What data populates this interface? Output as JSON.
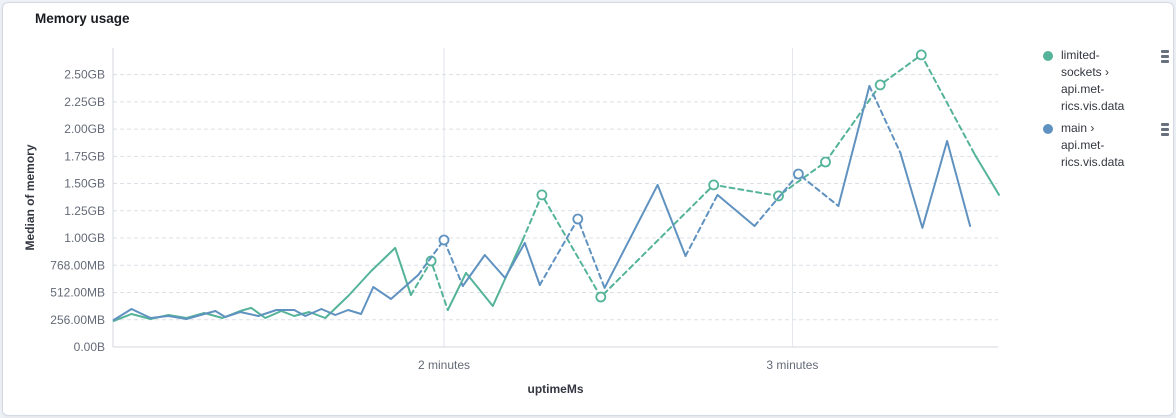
{
  "panel": {
    "title": "Memory usage"
  },
  "legend": {
    "items": [
      {
        "label": "limited-\nsockets ›\napi.met-\nrics.vis.data",
        "color": "#54B399",
        "action_icon": "boxes-vertical-icon"
      },
      {
        "label": "main ›\napi.met-\nrics.vis.data",
        "color": "#6092C0",
        "action_icon": "boxes-vertical-icon"
      }
    ]
  },
  "chart_data": {
    "type": "line",
    "title": "Memory usage",
    "xlabel": "uptimeMs",
    "ylabel": "Median of memory",
    "x_unit": "minutes",
    "y_unit": "MB (binary, 1GB = 1024MB)",
    "xlim": [
      1.05,
      3.59
    ],
    "ylim_mb": [
      0,
      2810
    ],
    "grid": true,
    "legend_position": "right",
    "x_ticks": [
      {
        "label": "2 minutes",
        "value": 2
      },
      {
        "label": "3 minutes",
        "value": 3
      }
    ],
    "y_ticks": [
      {
        "label": "0.00B",
        "mb": 0
      },
      {
        "label": "256.00MB",
        "mb": 256
      },
      {
        "label": "512.00MB",
        "mb": 512
      },
      {
        "label": "768.00MB",
        "mb": 768
      },
      {
        "label": "1.00GB",
        "mb": 1024
      },
      {
        "label": "1.25GB",
        "mb": 1280
      },
      {
        "label": "1.50GB",
        "mb": 1536
      },
      {
        "label": "1.75GB",
        "mb": 1792
      },
      {
        "label": "2.00GB",
        "mb": 2048
      },
      {
        "label": "2.25GB",
        "mb": 2304
      },
      {
        "label": "2.50GB",
        "mb": 2560
      }
    ],
    "series": [
      {
        "name": "limited-sockets › api.metrics.vis.data",
        "color": "#54B399",
        "segments": [
          {
            "style": "solid",
            "points": [
              [
                1.052,
                244
              ],
              [
                1.103,
                310
              ],
              [
                1.158,
                263
              ],
              [
                1.209,
                301
              ],
              [
                1.261,
                273
              ],
              [
                1.312,
                320
              ],
              [
                1.364,
                273
              ],
              [
                1.415,
                338
              ],
              [
                1.447,
                367
              ],
              [
                1.487,
                273
              ],
              [
                1.533,
                338
              ],
              [
                1.57,
                291
              ],
              [
                1.613,
                329
              ],
              [
                1.659,
                273
              ],
              [
                1.725,
                479
              ],
              [
                1.791,
                714
              ],
              [
                1.86,
                931
              ],
              [
                1.905,
                489
              ]
            ]
          },
          {
            "style": "dashed",
            "points": [
              [
                1.905,
                489
              ],
              [
                1.963,
                808
              ],
              [
                2.011,
                348
              ]
            ]
          },
          {
            "style": "solid",
            "points": [
              [
                2.011,
                348
              ],
              [
                2.063,
                696
              ],
              [
                2.14,
                385
              ],
              [
                2.226,
                1006
              ]
            ]
          },
          {
            "style": "dashed",
            "points": [
              [
                2.226,
                1006
              ],
              [
                2.281,
                1429
              ],
              [
                2.45,
                470
              ],
              [
                2.774,
                1523
              ],
              [
                2.96,
                1420
              ],
              [
                3.095,
                1739
              ],
              [
                3.252,
                2463
              ],
              [
                3.37,
                2745
              ],
              [
                3.524,
                1805
              ]
            ]
          },
          {
            "style": "solid",
            "points": [
              [
                3.524,
                1805
              ],
              [
                3.593,
                1429
              ]
            ]
          }
        ],
        "isolated_points": [
          [
            1.963,
            808
          ],
          [
            2.281,
            1429
          ],
          [
            2.45,
            470
          ],
          [
            2.774,
            1523
          ],
          [
            2.96,
            1420
          ],
          [
            3.095,
            1739
          ],
          [
            3.252,
            2463
          ],
          [
            3.37,
            2745
          ]
        ]
      },
      {
        "name": "main › api.metrics.vis.data",
        "color": "#6092C0",
        "segments": [
          {
            "style": "solid",
            "points": [
              [
                1.052,
                254
              ],
              [
                1.103,
                357
              ],
              [
                1.158,
                273
              ],
              [
                1.209,
                291
              ],
              [
                1.261,
                263
              ],
              [
                1.312,
                310
              ],
              [
                1.344,
                338
              ],
              [
                1.372,
                282
              ],
              [
                1.415,
                329
              ],
              [
                1.467,
                291
              ],
              [
                1.519,
                348
              ],
              [
                1.57,
                348
              ],
              [
                1.602,
                291
              ],
              [
                1.648,
                357
              ],
              [
                1.688,
                301
              ],
              [
                1.725,
                348
              ],
              [
                1.762,
                310
              ],
              [
                1.797,
                564
              ],
              [
                1.848,
                451
              ],
              [
                1.926,
                677
              ]
            ]
          },
          {
            "style": "dashed",
            "points": [
              [
                1.926,
                677
              ],
              [
                2.0,
                1006
              ],
              [
                2.054,
                573
              ]
            ]
          },
          {
            "style": "solid",
            "points": [
              [
                2.054,
                573
              ],
              [
                2.117,
                865
              ],
              [
                2.175,
                649
              ],
              [
                2.232,
                978
              ],
              [
                2.275,
                583
              ]
            ]
          },
          {
            "style": "dashed",
            "points": [
              [
                2.275,
                583
              ],
              [
                2.384,
                1203
              ],
              [
                2.461,
                555
              ]
            ]
          },
          {
            "style": "solid",
            "points": [
              [
                2.461,
                555
              ],
              [
                2.613,
                1523
              ],
              [
                2.693,
                855
              ]
            ]
          },
          {
            "style": "dashed",
            "points": [
              [
                2.693,
                855
              ],
              [
                2.785,
                1429
              ]
            ]
          },
          {
            "style": "solid",
            "points": [
              [
                2.785,
                1429
              ],
              [
                2.891,
                1137
              ]
            ]
          },
          {
            "style": "dashed",
            "points": [
              [
                2.891,
                1137
              ],
              [
                3.017,
                1626
              ],
              [
                3.132,
                1325
              ]
            ]
          },
          {
            "style": "solid",
            "points": [
              [
                3.132,
                1325
              ],
              [
                3.221,
                2453
              ]
            ]
          },
          {
            "style": "dashed",
            "points": [
              [
                3.221,
                2453
              ],
              [
                3.31,
                1824
              ]
            ]
          },
          {
            "style": "solid",
            "points": [
              [
                3.31,
                1824
              ],
              [
                3.373,
                1119
              ],
              [
                3.444,
                1936
              ],
              [
                3.51,
                1137
              ]
            ]
          }
        ],
        "isolated_points": [
          [
            2.0,
            1006
          ],
          [
            2.384,
            1203
          ],
          [
            3.017,
            1626
          ]
        ]
      }
    ],
    "style_note": "solid = measured data, dashed = fitted gap segments, hollow circles = isolated data points"
  },
  "colors": {
    "series_green": "#54B399",
    "series_blue": "#6092C0",
    "grid_dashed": "#dcdfe5",
    "grid_vertical": "#e3e6eb",
    "axis_line": "#d3d7de",
    "tick_text": "#646a77",
    "title_text": "#1a1c21"
  }
}
